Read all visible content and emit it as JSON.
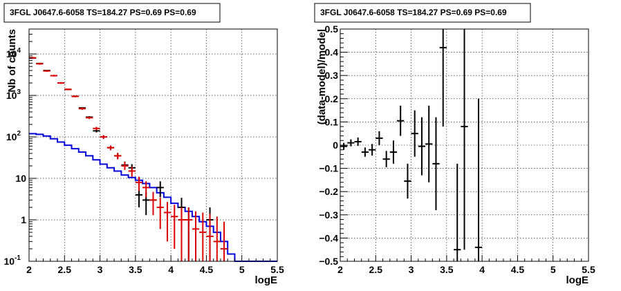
{
  "chart_data": [
    {
      "type": "line",
      "title": "3FGL J0647.6-6058 TS=184.27 PS=0.69 PS=0.69",
      "xlabel": "logE",
      "ylabel": "Nb of counts",
      "xlim": [
        2,
        5.5
      ],
      "ylim": [
        0.1,
        40000
      ],
      "yscale": "log",
      "grid": true,
      "x_ticks": [
        "2",
        "2.5",
        "3",
        "3.5",
        "4",
        "4.5",
        "5",
        "5.5"
      ],
      "y_ticks": [
        {
          "v": 0.1,
          "base": "10",
          "exp": "-1"
        },
        {
          "v": 1,
          "base": "1",
          "exp": ""
        },
        {
          "v": 10,
          "base": "10",
          "exp": ""
        },
        {
          "v": 100,
          "base": "10",
          "exp": "2"
        },
        {
          "v": 1000,
          "base": "10",
          "exp": "3"
        },
        {
          "v": 10000,
          "base": "10",
          "exp": "4"
        }
      ],
      "colors": {
        "data": "#000000",
        "model": "#dd0000",
        "background": "#0000dd"
      },
      "series": [
        {
          "kind": "data_points",
          "color": "#000000",
          "points": [
            {
              "x": 2.05,
              "y": 8000,
              "lo": 7800,
              "hi": 8200
            },
            {
              "x": 2.15,
              "y": 5900,
              "lo": 5800,
              "hi": 6000
            },
            {
              "x": 2.25,
              "y": 4000,
              "lo": 3900,
              "hi": 4100
            },
            {
              "x": 2.35,
              "y": 3000,
              "lo": 2930,
              "hi": 3080
            },
            {
              "x": 2.45,
              "y": 2000,
              "lo": 1950,
              "hi": 2050
            },
            {
              "x": 2.55,
              "y": 1400,
              "lo": 1370,
              "hi": 1440
            },
            {
              "x": 2.65,
              "y": 950,
              "lo": 920,
              "hi": 980
            },
            {
              "x": 2.75,
              "y": 500,
              "lo": 480,
              "hi": 520
            },
            {
              "x": 2.85,
              "y": 300,
              "lo": 283,
              "hi": 317
            },
            {
              "x": 2.95,
              "y": 140,
              "lo": 128,
              "hi": 152
            },
            {
              "x": 3.05,
              "y": 100,
              "lo": 90,
              "hi": 110
            },
            {
              "x": 3.15,
              "y": 55,
              "lo": 48,
              "hi": 62
            },
            {
              "x": 3.25,
              "y": 35,
              "lo": 29,
              "hi": 41
            },
            {
              "x": 3.35,
              "y": 21,
              "lo": 16.5,
              "hi": 25.5
            },
            {
              "x": 3.45,
              "y": 18,
              "lo": 14,
              "hi": 22
            },
            {
              "x": 3.55,
              "y": 4,
              "lo": 2,
              "hi": 6
            },
            {
              "x": 3.65,
              "y": 3,
              "lo": 1.3,
              "hi": 4.7
            },
            {
              "x": 3.75,
              "y": 3,
              "lo": 1.3,
              "hi": 4.7
            },
            {
              "x": 3.85,
              "y": 6,
              "lo": 3.5,
              "hi": 8.5
            },
            {
              "x": 4.15,
              "y": 2,
              "lo": 0.6,
              "hi": 3.4
            },
            {
              "x": 4.25,
              "y": 1,
              "lo": 0.1,
              "hi": 2.0
            },
            {
              "x": 4.55,
              "y": 1,
              "lo": 0.1,
              "hi": 2.0
            }
          ]
        },
        {
          "kind": "model_points",
          "color": "#dd0000",
          "points": [
            {
              "x": 2.05,
              "y": 8100,
              "lo": 7700,
              "hi": 8500
            },
            {
              "x": 2.15,
              "y": 5800,
              "lo": 5500,
              "hi": 6100
            },
            {
              "x": 2.25,
              "y": 3900,
              "lo": 3700,
              "hi": 4100
            },
            {
              "x": 2.35,
              "y": 3000,
              "lo": 2850,
              "hi": 3150
            },
            {
              "x": 2.45,
              "y": 2000,
              "lo": 1900,
              "hi": 2100
            },
            {
              "x": 2.55,
              "y": 1400,
              "lo": 1330,
              "hi": 1470
            },
            {
              "x": 2.65,
              "y": 950,
              "lo": 900,
              "hi": 1000
            },
            {
              "x": 2.75,
              "y": 480,
              "lo": 450,
              "hi": 510
            },
            {
              "x": 2.85,
              "y": 290,
              "lo": 270,
              "hi": 310
            },
            {
              "x": 2.95,
              "y": 160,
              "lo": 145,
              "hi": 175
            },
            {
              "x": 3.05,
              "y": 100,
              "lo": 90,
              "hi": 110
            },
            {
              "x": 3.15,
              "y": 55,
              "lo": 48,
              "hi": 62
            },
            {
              "x": 3.25,
              "y": 35,
              "lo": 29,
              "hi": 41
            },
            {
              "x": 3.35,
              "y": 20,
              "lo": 16,
              "hi": 25
            },
            {
              "x": 3.45,
              "y": 15,
              "lo": 11,
              "hi": 19
            },
            {
              "x": 3.55,
              "y": 8,
              "lo": 5,
              "hi": 11
            },
            {
              "x": 3.65,
              "y": 6,
              "lo": 3.5,
              "hi": 8.5
            },
            {
              "x": 3.75,
              "y": 3,
              "lo": 1.3,
              "hi": 4.7
            },
            {
              "x": 3.85,
              "y": 2,
              "lo": 0.6,
              "hi": 3.4
            },
            {
              "x": 3.95,
              "y": 1.5,
              "lo": 0.3,
              "hi": 2.7
            },
            {
              "x": 4.05,
              "y": 1.2,
              "lo": 0.2,
              "hi": 2.3
            },
            {
              "x": 4.15,
              "y": 1,
              "lo": 0.1,
              "hi": 2.0
            },
            {
              "x": 4.25,
              "y": 1,
              "lo": 0.1,
              "hi": 2.0
            },
            {
              "x": 4.35,
              "y": 0.6,
              "lo": 0.1,
              "hi": 1.6
            },
            {
              "x": 4.45,
              "y": 0.5,
              "lo": 0.1,
              "hi": 1.5
            },
            {
              "x": 4.55,
              "y": 0.4,
              "lo": 0.1,
              "hi": 1.4
            },
            {
              "x": 4.65,
              "y": 0.3,
              "lo": 0.1,
              "hi": 1.2
            },
            {
              "x": 4.75,
              "y": 0.2,
              "lo": 0.1,
              "hi": 0.9
            }
          ]
        },
        {
          "kind": "step_histogram",
          "color": "#0000dd",
          "bin_width": 0.1,
          "start": 2.0,
          "values": [
            120,
            115,
            105,
            90,
            75,
            63,
            52,
            43,
            35,
            28,
            22,
            18,
            15,
            12,
            10.5,
            9,
            7.5,
            6,
            4.5,
            3.5,
            2.5,
            2.0,
            1.6,
            1.2,
            0.9,
            0.7,
            0.5,
            0.3,
            0.15,
            0.1,
            0.1,
            0.1,
            0.1,
            0.1,
            0.1
          ]
        }
      ]
    },
    {
      "type": "scatter",
      "title": "3FGL J0647.6-6058 TS=184.27 PS=0.69 PS=0.69",
      "xlabel": "logE",
      "ylabel": "(data-model)/model",
      "xlim": [
        2,
        5.5
      ],
      "ylim": [
        -0.5,
        0.5
      ],
      "grid": true,
      "x_ticks": [
        "2",
        "2.5",
        "3",
        "3.5",
        "4",
        "4.5",
        "5",
        "5.5"
      ],
      "y_ticks": [
        "−0.5",
        "−0.4",
        "−0.3",
        "−0.2",
        "−0.1",
        "0",
        "0.1",
        "0.2",
        "0.3",
        "0.4",
        "0.5"
      ],
      "y_tick_values": [
        -0.5,
        -0.4,
        -0.3,
        -0.2,
        -0.1,
        0,
        0.1,
        0.2,
        0.3,
        0.4,
        0.5
      ],
      "points": [
        {
          "x": 2.05,
          "y": -0.005,
          "lo": -0.02,
          "hi": 0.01
        },
        {
          "x": 2.15,
          "y": 0.01,
          "lo": -0.005,
          "hi": 0.025
        },
        {
          "x": 2.25,
          "y": 0.015,
          "lo": -0.003,
          "hi": 0.033
        },
        {
          "x": 2.35,
          "y": -0.03,
          "lo": -0.05,
          "hi": -0.01
        },
        {
          "x": 2.45,
          "y": -0.02,
          "lo": -0.045,
          "hi": 0.005
        },
        {
          "x": 2.55,
          "y": 0.03,
          "lo": 0.0,
          "hi": 0.06
        },
        {
          "x": 2.65,
          "y": -0.06,
          "lo": -0.095,
          "hi": -0.025
        },
        {
          "x": 2.75,
          "y": -0.03,
          "lo": -0.08,
          "hi": 0.02
        },
        {
          "x": 2.85,
          "y": 0.105,
          "lo": 0.04,
          "hi": 0.17
        },
        {
          "x": 2.95,
          "y": -0.155,
          "lo": -0.23,
          "hi": -0.08
        },
        {
          "x": 3.05,
          "y": 0.05,
          "lo": -0.05,
          "hi": 0.15
        },
        {
          "x": 3.15,
          "y": -0.005,
          "lo": -0.13,
          "hi": 0.12
        },
        {
          "x": 3.25,
          "y": 0.005,
          "lo": -0.16,
          "hi": 0.17
        },
        {
          "x": 3.35,
          "y": -0.08,
          "lo": -0.28,
          "hi": 0.12
        },
        {
          "x": 3.45,
          "y": 0.42,
          "lo": 0.08,
          "hi": 0.5
        },
        {
          "x": 3.65,
          "y": -0.45,
          "lo": -0.5,
          "hi": -0.08
        },
        {
          "x": 3.75,
          "y": 0.08,
          "lo": -0.45,
          "hi": 0.5
        },
        {
          "x": 3.95,
          "y": -0.44,
          "lo": -0.5,
          "hi": 0.2
        }
      ]
    }
  ]
}
